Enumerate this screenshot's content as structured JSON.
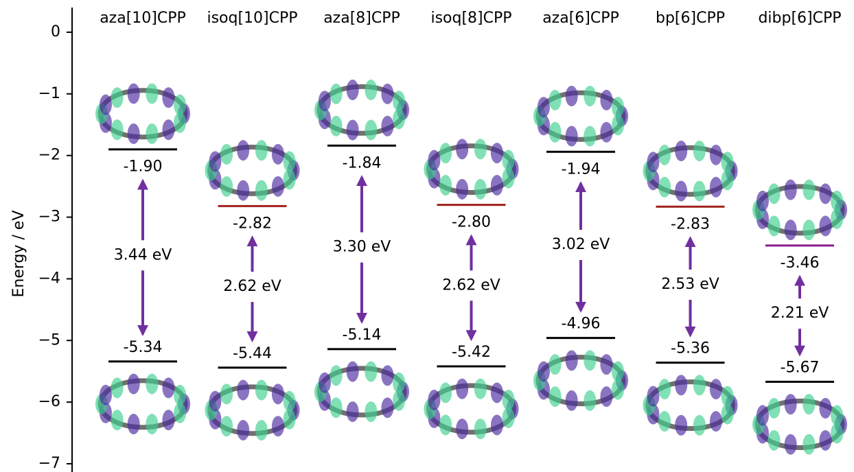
{
  "chart_data": {
    "type": "energy_levels",
    "y_label": "Energy / eV",
    "categories": [
      "aza[10]CPP",
      "isoq[10]CPP",
      "aza[8]CPP",
      "isoq[8]CPP",
      "aza[6]CPP",
      "bp[6]CPP",
      "dibp[6]CPP"
    ],
    "lumo": {
      "values": [
        -1.9,
        -2.82,
        -1.84,
        -2.8,
        -1.94,
        -2.83,
        -3.46
      ],
      "value_labels": [
        "-1.90",
        "-2.82",
        "-1.84",
        "-2.80",
        "-1.94",
        "-2.83",
        "-3.46"
      ],
      "colors": [
        "#000000",
        "#a0201c",
        "#000000",
        "#a0201c",
        "#000000",
        "#a0201c",
        "#8b1a8b"
      ]
    },
    "homo": {
      "values": [
        -5.34,
        -5.44,
        -5.14,
        -5.42,
        -4.96,
        -5.36,
        -5.67
      ],
      "value_labels": [
        "-5.34",
        "-5.44",
        "-5.14",
        "-5.42",
        "-4.96",
        "-5.36",
        "-5.67"
      ],
      "color": "#000000"
    },
    "gap": {
      "values": [
        3.44,
        2.62,
        3.3,
        2.62,
        3.02,
        2.53,
        2.21
      ],
      "value_labels": [
        "3.44 eV",
        "2.62 eV",
        "3.30 eV",
        "2.62 eV",
        "3.02 eV",
        "2.53 eV",
        "2.21 eV"
      ],
      "color": "#7030a0"
    },
    "ylim": [
      -7.1,
      0.4
    ],
    "yticks": [
      0,
      {
        "value": -1,
        "label": "−1"
      },
      {
        "value": -2,
        "label": "−2"
      },
      {
        "value": -3,
        "label": "−3"
      },
      {
        "value": -4,
        "label": "−4"
      },
      {
        "value": -5,
        "label": "−5"
      },
      {
        "value": -6,
        "label": "−6"
      },
      {
        "value": -7,
        "label": "−7"
      }
    ]
  }
}
